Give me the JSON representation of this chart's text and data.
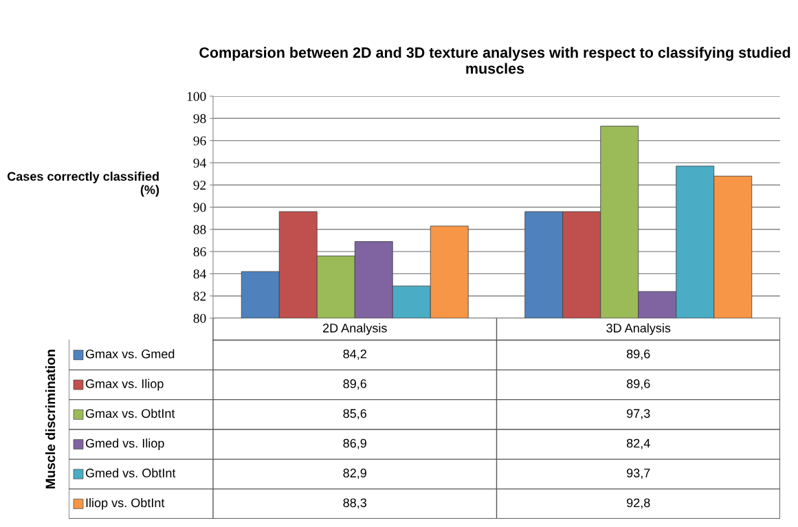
{
  "chart_data": {
    "type": "bar",
    "title": "Comparsion between 2D and 3D texture analyses with respect to classifying studied muscles",
    "ylabel": "Cases correctly classified (%)",
    "legend_title": "Muscle discrimination",
    "categories": [
      "2D Analysis",
      "3D Analysis"
    ],
    "series": [
      {
        "name": "Gmax vs. Gmed",
        "color": "#4f81bd",
        "values": [
          84.2,
          89.6
        ],
        "value_labels": [
          "84,2",
          "89,6"
        ]
      },
      {
        "name": "Gmax vs. Iliop",
        "color": "#c0504d",
        "values": [
          89.6,
          89.6
        ],
        "value_labels": [
          "89,6",
          "89,6"
        ]
      },
      {
        "name": "Gmax vs. ObtInt",
        "color": "#9bbb59",
        "values": [
          85.6,
          97.3
        ],
        "value_labels": [
          "85,6",
          "97,3"
        ]
      },
      {
        "name": "Gmed vs. Iliop",
        "color": "#8064a2",
        "values": [
          86.9,
          82.4
        ],
        "value_labels": [
          "86,9",
          "82,4"
        ]
      },
      {
        "name": "Gmed vs. ObtInt",
        "color": "#4bacc6",
        "values": [
          82.9,
          93.7
        ],
        "value_labels": [
          "82,9",
          "93,7"
        ]
      },
      {
        "name": "Iliop vs. ObtInt",
        "color": "#f79646",
        "values": [
          88.3,
          92.8
        ],
        "value_labels": [
          "88,3",
          "92,8"
        ]
      }
    ],
    "ylim": [
      80,
      100
    ],
    "yticks": [
      80,
      82,
      84,
      86,
      88,
      90,
      92,
      94,
      96,
      98,
      100
    ],
    "grid": "y",
    "legend": "bottom"
  }
}
